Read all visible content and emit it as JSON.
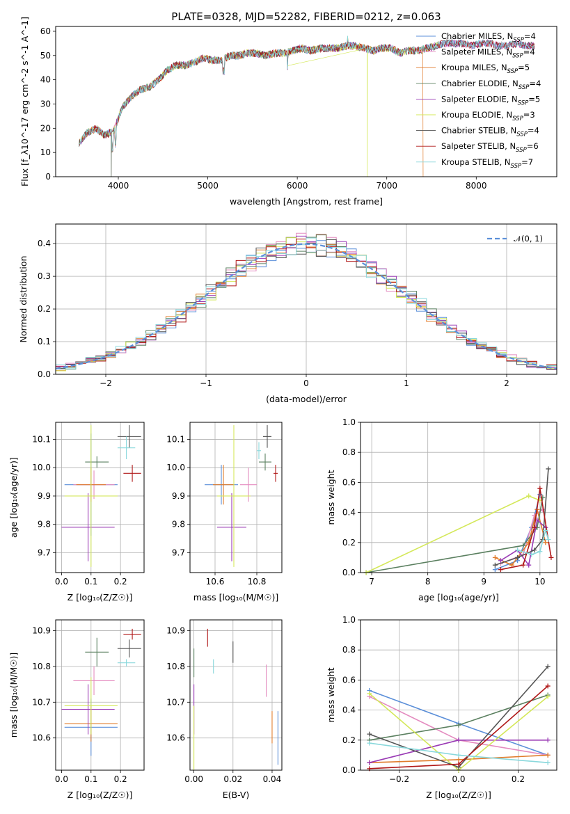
{
  "title": "PLATE=0328, MJD=52282, FIBERID=0212, z=0.063",
  "colors": {
    "Chabrier MILES": "#5b8fd9",
    "Salpeter MILES": "#e48cc0",
    "Kroupa MILES": "#e07b2a",
    "Chabrier ELODIE": "#5b8060",
    "Salpeter ELODIE": "#9a3bb5",
    "Kroupa ELODIE": "#d4e85a",
    "Chabrier STELIB": "#555555",
    "Salpeter STELIB": "#b01818",
    "Kroupa STELIB": "#8ad8dc"
  },
  "chart_data": [
    {
      "id": "spectrum",
      "type": "line",
      "xlabel": "wavelength [Angstrom, rest frame]",
      "ylabel": "Flux [f_λ10^-17 erg cm^-2 s^-1 A^-1]",
      "xlim": [
        3300,
        8900
      ],
      "ylim": [
        0,
        62
      ],
      "xticks": [
        "4000",
        "5000",
        "6000",
        "7000",
        "8000"
      ],
      "xtick_values": [
        4000,
        5000,
        6000,
        7000,
        8000
      ],
      "yticks": [
        "0",
        "10",
        "20",
        "30",
        "40",
        "50",
        "60"
      ],
      "ytick_values": [
        0,
        10,
        20,
        30,
        40,
        50,
        60
      ],
      "legend_position": "right",
      "legend": [
        {
          "label": "Chabrier MILES, N",
          "sub": "SSP",
          "suffix": "=4"
        },
        {
          "label": "Salpeter MILES, N",
          "sub": "SSP",
          "suffix": "=4"
        },
        {
          "label": "Kroupa MILES, N",
          "sub": "SSP",
          "suffix": "=5"
        },
        {
          "label": "Chabrier ELODIE, N",
          "sub": "SSP",
          "suffix": "=4"
        },
        {
          "label": "Salpeter ELODIE, N",
          "sub": "SSP",
          "suffix": "=5"
        },
        {
          "label": "Kroupa ELODIE, N",
          "sub": "SSP",
          "suffix": "=3"
        },
        {
          "label": "Chabrier STELIB, N",
          "sub": "SSP",
          "suffix": "=4"
        },
        {
          "label": "Salpeter STELIB, N",
          "sub": "SSP",
          "suffix": "=6"
        },
        {
          "label": "Kroupa STELIB, N",
          "sub": "SSP",
          "suffix": "=7"
        }
      ],
      "continuum_x": [
        3560,
        3650,
        3750,
        3850,
        3950,
        4050,
        4150,
        4250,
        4350,
        4450,
        4550,
        4650,
        4750,
        4850,
        4950,
        5050,
        5150,
        5250,
        5350,
        5450,
        5550,
        5650,
        5750,
        5850,
        5950,
        6050,
        6150,
        6250,
        6350,
        6450,
        6550,
        6650,
        6750,
        6850,
        6950,
        7050,
        7150,
        7250,
        7350,
        7450,
        7550,
        7650,
        7750,
        7850,
        7950,
        8050,
        8150,
        8250,
        8350,
        8450,
        8550,
        8650
      ],
      "continuum_y": [
        14,
        18,
        20,
        17,
        19,
        29,
        33,
        36,
        37,
        40,
        44,
        46,
        46,
        47,
        49,
        48,
        48,
        50,
        50,
        51,
        51,
        50,
        51,
        51,
        52,
        53,
        52,
        53,
        53,
        53,
        54,
        54,
        53,
        52,
        53,
        53,
        51,
        52,
        52,
        53,
        54,
        55,
        55,
        55,
        54,
        55,
        55,
        54,
        54,
        55,
        54,
        54
      ],
      "dropouts_x": [
        3920,
        6780,
        7405
      ]
    },
    {
      "id": "residuals",
      "type": "histogram",
      "xlabel": "(data-model)/error",
      "ylabel": "Normed distribution",
      "xlim": [
        -2.5,
        2.5
      ],
      "ylim": [
        0,
        0.46
      ],
      "xticks": [
        "−2",
        "−1",
        "0",
        "1",
        "2"
      ],
      "xtick_values": [
        -2,
        -1,
        0,
        1,
        2
      ],
      "yticks": [
        "0.0",
        "0.1",
        "0.2",
        "0.3",
        "0.4"
      ],
      "ytick_values": [
        0,
        0.1,
        0.2,
        0.3,
        0.4
      ],
      "bin_width": 0.1,
      "reference": {
        "label": "𝒩(0, 1)",
        "mean": 0,
        "sigma": 1
      },
      "legend_position": "upper right"
    },
    {
      "id": "age-vs-Z",
      "type": "scatter",
      "xlabel": "Z [log₁₀(Z/Z☉)]",
      "ylabel": "age  [log₁₀(age/yr)]",
      "xlim": [
        -0.02,
        0.28
      ],
      "ylim": [
        9.63,
        10.16
      ],
      "xticks": [
        "0.0",
        "0.1",
        "0.2"
      ],
      "xtick_values": [
        0,
        0.1,
        0.2
      ],
      "yticks": [
        "9.7",
        "9.8",
        "9.9",
        "10.0",
        "10.1"
      ],
      "ytick_values": [
        9.7,
        9.8,
        9.9,
        10.0,
        10.1
      ],
      "points": [
        {
          "series": "Chabrier MILES",
          "x": 0.1,
          "y": 9.94,
          "xerr": 0.09,
          "yerr": 0.18
        },
        {
          "series": "Salpeter MILES",
          "x": 0.11,
          "y": 9.94,
          "xerr": 0.07,
          "yerr": 0.05
        },
        {
          "series": "Kroupa MILES",
          "x": 0.1,
          "y": 9.94,
          "xerr": 0.05,
          "yerr": 0.06
        },
        {
          "series": "Chabrier ELODIE",
          "x": 0.12,
          "y": 10.02,
          "xerr": 0.04,
          "yerr": 0.02
        },
        {
          "series": "Salpeter ELODIE",
          "x": 0.09,
          "y": 9.79,
          "xerr": 0.09,
          "yerr": 0.12
        },
        {
          "series": "Kroupa ELODIE",
          "x": 0.1,
          "y": 9.9,
          "xerr": 0.09,
          "yerr": 0.25
        },
        {
          "series": "Chabrier STELIB",
          "x": 0.23,
          "y": 10.11,
          "xerr": 0.04,
          "yerr": 0.04
        },
        {
          "series": "Salpeter STELIB",
          "x": 0.24,
          "y": 9.98,
          "xerr": 0.03,
          "yerr": 0.03
        },
        {
          "series": "Kroupa STELIB",
          "x": 0.22,
          "y": 10.07,
          "xerr": 0.03,
          "yerr": 0.04
        }
      ]
    },
    {
      "id": "age-vs-mass",
      "type": "scatter",
      "xlabel": "mass [log₁₀(M/M☉)]",
      "ylabel": "",
      "xlim": [
        10.48,
        10.92
      ],
      "ylim": [
        9.63,
        10.16
      ],
      "xticks": [
        "10.6",
        "10.8"
      ],
      "xtick_values": [
        10.6,
        10.8
      ],
      "yticks": [
        "9.7",
        "9.8",
        "9.9",
        "10.0",
        "10.1"
      ],
      "ytick_values": [
        9.7,
        9.8,
        9.9,
        10.0,
        10.1
      ],
      "points": [
        {
          "series": "Chabrier MILES",
          "x": 10.63,
          "y": 9.94,
          "xerr": 0.08,
          "yerr": 0.07
        },
        {
          "series": "Salpeter MILES",
          "x": 10.76,
          "y": 9.94,
          "xerr": 0.04,
          "yerr": 0.06
        },
        {
          "series": "Kroupa MILES",
          "x": 10.64,
          "y": 9.94,
          "xerr": 0.05,
          "yerr": 0.07
        },
        {
          "series": "Chabrier ELODIE",
          "x": 10.84,
          "y": 10.02,
          "xerr": 0.03,
          "yerr": 0.03
        },
        {
          "series": "Salpeter ELODIE",
          "x": 10.68,
          "y": 9.79,
          "xerr": 0.07,
          "yerr": 0.12
        },
        {
          "series": "Kroupa ELODIE",
          "x": 10.69,
          "y": 9.9,
          "xerr": 0.08,
          "yerr": 0.25
        },
        {
          "series": "Chabrier STELIB",
          "x": 10.85,
          "y": 10.11,
          "xerr": 0.02,
          "yerr": 0.04
        },
        {
          "series": "Salpeter STELIB",
          "x": 10.89,
          "y": 9.98,
          "xerr": 0.01,
          "yerr": 0.03
        },
        {
          "series": "Kroupa STELIB",
          "x": 10.81,
          "y": 10.06,
          "xerr": 0.01,
          "yerr": 0.03
        }
      ]
    },
    {
      "id": "mass-weight-vs-age",
      "type": "line",
      "xlabel": "age  [log₁₀(age/yr)]",
      "ylabel": "mass weight",
      "xlim": [
        6.8,
        10.3
      ],
      "ylim": [
        0,
        1
      ],
      "grid": true,
      "xticks": [
        "7",
        "8",
        "9",
        "10"
      ],
      "xtick_values": [
        7,
        8,
        9,
        10
      ],
      "yticks": [
        "0.0",
        "0.2",
        "0.4",
        "0.6",
        "0.8",
        "1.0"
      ],
      "ytick_values": [
        0,
        0.2,
        0.4,
        0.6,
        0.8,
        1.0
      ],
      "series": [
        {
          "name": "Chabrier MILES",
          "x": [
            9.2,
            9.6,
            9.85,
            10.0
          ],
          "y": [
            0.02,
            0.08,
            0.3,
            0.52
          ]
        },
        {
          "name": "Salpeter MILES",
          "x": [
            9.3,
            9.7,
            9.9,
            10.05
          ],
          "y": [
            0.06,
            0.12,
            0.38,
            0.42
          ]
        },
        {
          "name": "Kroupa MILES",
          "x": [
            9.2,
            9.5,
            9.8,
            9.95,
            10.1
          ],
          "y": [
            0.1,
            0.05,
            0.2,
            0.42,
            0.2
          ]
        },
        {
          "name": "Chabrier ELODIE",
          "x": [
            6.9,
            9.7,
            9.95,
            10.05
          ],
          "y": [
            0.0,
            0.18,
            0.3,
            0.5
          ]
        },
        {
          "name": "Salpeter ELODIE",
          "x": [
            9.3,
            9.6,
            9.8,
            9.95,
            10.1
          ],
          "y": [
            0.08,
            0.15,
            0.05,
            0.35,
            0.3
          ]
        },
        {
          "name": "Kroupa ELODIE",
          "x": [
            6.9,
            9.8,
            10.0
          ],
          "y": [
            0.0,
            0.51,
            0.48
          ]
        },
        {
          "name": "Chabrier STELIB",
          "x": [
            9.2,
            9.6,
            9.9,
            10.05,
            10.15
          ],
          "y": [
            0.05,
            0.1,
            0.15,
            0.22,
            0.69
          ]
        },
        {
          "name": "Salpeter STELIB",
          "x": [
            9.3,
            9.7,
            9.9,
            10.0,
            10.2
          ],
          "y": [
            0.02,
            0.05,
            0.3,
            0.56,
            0.1
          ]
        },
        {
          "name": "Kroupa STELIB",
          "x": [
            9.6,
            9.85,
            10.0,
            10.1,
            10.15
          ],
          "y": [
            0.15,
            0.12,
            0.14,
            0.28,
            0.22
          ]
        }
      ]
    },
    {
      "id": "mass-vs-Z",
      "type": "scatter",
      "xlabel": "Z [log₁₀(Z/Z☉)]",
      "ylabel": "mass [log₁₀(M/M☉)]",
      "xlim": [
        -0.02,
        0.28
      ],
      "ylim": [
        10.51,
        10.93
      ],
      "xticks": [
        "0.0",
        "0.1",
        "0.2"
      ],
      "xtick_values": [
        0,
        0.1,
        0.2
      ],
      "yticks": [
        "10.6",
        "10.7",
        "10.8",
        "10.9"
      ],
      "ytick_values": [
        10.6,
        10.7,
        10.8,
        10.9
      ],
      "points": [
        {
          "series": "Chabrier MILES",
          "x": 0.1,
          "y": 10.63,
          "xerr": 0.09,
          "yerr": 0.08
        },
        {
          "series": "Salpeter MILES",
          "x": 0.11,
          "y": 10.76,
          "xerr": 0.07,
          "yerr": 0.04
        },
        {
          "series": "Kroupa MILES",
          "x": 0.1,
          "y": 10.64,
          "xerr": 0.09,
          "yerr": 0.05
        },
        {
          "series": "Chabrier ELODIE",
          "x": 0.12,
          "y": 10.84,
          "xerr": 0.04,
          "yerr": 0.04
        },
        {
          "series": "Salpeter ELODIE",
          "x": 0.09,
          "y": 10.68,
          "xerr": 0.09,
          "yerr": 0.07
        },
        {
          "series": "Kroupa ELODIE",
          "x": 0.1,
          "y": 10.69,
          "xerr": 0.09,
          "yerr": 0.08
        },
        {
          "series": "Chabrier STELIB",
          "x": 0.23,
          "y": 10.85,
          "xerr": 0.04,
          "yerr": 0.025
        },
        {
          "series": "Salpeter STELIB",
          "x": 0.24,
          "y": 10.89,
          "xerr": 0.03,
          "yerr": 0.015
        },
        {
          "series": "Kroupa STELIB",
          "x": 0.22,
          "y": 10.81,
          "xerr": 0.03,
          "yerr": 0.01
        }
      ]
    },
    {
      "id": "mass-vs-EBV",
      "type": "scatter",
      "xlabel": "E(B-V)",
      "ylabel": "",
      "xlim": [
        -0.002,
        0.045
      ],
      "ylim": [
        10.51,
        10.93
      ],
      "xticks": [
        "0.00",
        "0.02",
        "0.04"
      ],
      "xtick_values": [
        0,
        0.02,
        0.04
      ],
      "yticks": [
        "10.6",
        "10.7",
        "10.8",
        "10.9"
      ],
      "ytick_values": [
        10.6,
        10.7,
        10.8,
        10.9
      ],
      "points": [
        {
          "series": "Chabrier MILES",
          "x": 0.043,
          "y": 10.6,
          "xerr": 0,
          "yerr": 0.075
        },
        {
          "series": "Salpeter MILES",
          "x": 0.037,
          "y": 10.76,
          "xerr": 0,
          "yerr": 0.045
        },
        {
          "series": "Kroupa MILES",
          "x": 0.04,
          "y": 10.63,
          "xerr": 0,
          "yerr": 0.045
        },
        {
          "series": "Chabrier ELODIE",
          "x": 0.0,
          "y": 10.81,
          "xerr": 0,
          "yerr": 0.04
        },
        {
          "series": "Salpeter ELODIE",
          "x": 0.0,
          "y": 10.68,
          "xerr": 0,
          "yerr": 0.07
        },
        {
          "series": "Kroupa ELODIE",
          "x": 0.0,
          "y": 10.6,
          "xerr": 0,
          "yerr": 0.09
        },
        {
          "series": "Chabrier STELIB",
          "x": 0.02,
          "y": 10.84,
          "xerr": 0,
          "yerr": 0.03
        },
        {
          "series": "Salpeter STELIB",
          "x": 0.007,
          "y": 10.88,
          "xerr": 0,
          "yerr": 0.025
        },
        {
          "series": "Kroupa STELIB",
          "x": 0.01,
          "y": 10.8,
          "xerr": 0,
          "yerr": 0.02
        }
      ]
    },
    {
      "id": "mass-weight-vs-Z",
      "type": "line",
      "xlabel": "Z [log₁₀(Z/Z☉)]",
      "ylabel": "mass weight",
      "xlim": [
        -0.33,
        0.33
      ],
      "ylim": [
        0,
        1
      ],
      "grid": true,
      "xticks": [
        "−0.2",
        "0.0",
        "0.2"
      ],
      "xtick_values": [
        -0.2,
        0,
        0.2
      ],
      "yticks": [
        "0.0",
        "0.2",
        "0.4",
        "0.6",
        "0.8",
        "1.0"
      ],
      "ytick_values": [
        0,
        0.2,
        0.4,
        0.6,
        0.8,
        1.0
      ],
      "series": [
        {
          "name": "Chabrier MILES",
          "x": [
            -0.3,
            0.0,
            0.3
          ],
          "y": [
            0.53,
            0.31,
            0.1
          ]
        },
        {
          "name": "Salpeter MILES",
          "x": [
            -0.3,
            0.0,
            0.3
          ],
          "y": [
            0.49,
            0.2,
            0.1
          ]
        },
        {
          "name": "Kroupa MILES",
          "x": [
            -0.3,
            0.0,
            0.3
          ],
          "y": [
            0.05,
            0.07,
            0.1
          ]
        },
        {
          "name": "Chabrier ELODIE",
          "x": [
            -0.3,
            0.0,
            0.3
          ],
          "y": [
            0.2,
            0.3,
            0.5
          ]
        },
        {
          "name": "Salpeter ELODIE",
          "x": [
            -0.3,
            0.0,
            0.3
          ],
          "y": [
            0.05,
            0.2,
            0.2
          ]
        },
        {
          "name": "Kroupa ELODIE",
          "x": [
            -0.3,
            0.0,
            0.3
          ],
          "y": [
            0.51,
            0.0,
            0.49
          ]
        },
        {
          "name": "Chabrier STELIB",
          "x": [
            -0.3,
            0.0,
            0.3
          ],
          "y": [
            0.24,
            0.02,
            0.69
          ]
        },
        {
          "name": "Salpeter STELIB",
          "x": [
            -0.3,
            0.0,
            0.3
          ],
          "y": [
            0.01,
            0.04,
            0.56
          ]
        },
        {
          "name": "Kroupa STELIB",
          "x": [
            -0.3,
            0.0,
            0.3
          ],
          "y": [
            0.18,
            0.1,
            0.05
          ]
        }
      ]
    }
  ]
}
